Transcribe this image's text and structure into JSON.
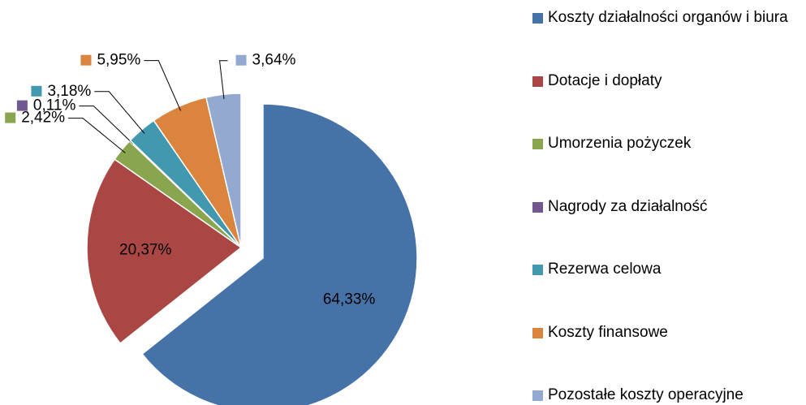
{
  "chart_data": {
    "type": "pie",
    "categories": [
      "Koszty działalności organów i biura",
      "Dotacje i dopłaty",
      "Umorzenia pożyczek",
      "Nagrody za działalność",
      "Rezerwa celowa",
      "Koszty finansowe",
      "Pozostałe koszty operacyjne"
    ],
    "values": [
      64.33,
      20.37,
      2.42,
      0.11,
      3.18,
      5.95,
      3.64
    ],
    "value_labels": [
      "64,33%",
      "20,37%",
      "2,42%",
      "0,11%",
      "3,18%",
      "5,95%",
      "3,64%"
    ],
    "colors": [
      "#4572a7",
      "#aa4643",
      "#89a54e",
      "#71588f",
      "#4198af",
      "#db843d",
      "#93a9cf"
    ],
    "legend": "right"
  }
}
